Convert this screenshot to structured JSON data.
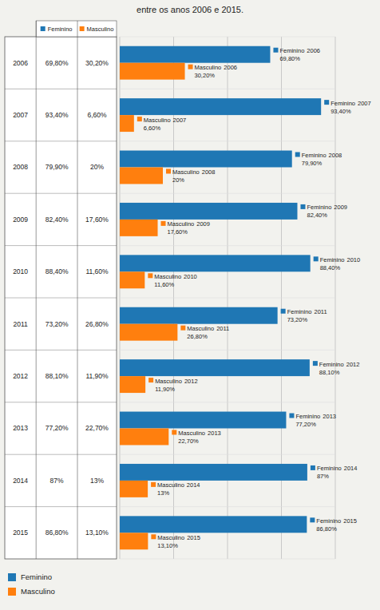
{
  "chart_data": {
    "type": "bar",
    "orientation": "horizontal",
    "title": "entre os anos 2006 e 2015.",
    "categories": [
      "2006",
      "2007",
      "2008",
      "2009",
      "2010",
      "2011",
      "2012",
      "2013",
      "2014",
      "2015"
    ],
    "series": [
      {
        "name": "Feminino",
        "values": [
          69.8,
          93.4,
          79.9,
          82.4,
          88.4,
          73.2,
          88.1,
          77.2,
          87.0,
          86.8
        ],
        "value_labels": [
          "69,80%",
          "93,40%",
          "79,90%",
          "82,40%",
          "88,40%",
          "73,20%",
          "88,10%",
          "77,20%",
          "87%",
          "86,80%"
        ]
      },
      {
        "name": "Masculino",
        "values": [
          30.2,
          6.6,
          20.0,
          17.6,
          11.6,
          26.8,
          11.9,
          22.7,
          13.0,
          13.1
        ],
        "value_labels": [
          "30,20%",
          "6,60%",
          "20%",
          "17,60%",
          "11,60%",
          "26,80%",
          "11,90%",
          "22,70%",
          "13%",
          "13,10%"
        ]
      }
    ],
    "xlim": [
      0,
      100
    ],
    "xticks": [
      0,
      25,
      50,
      75,
      100
    ],
    "grid": true,
    "tick_labels": false,
    "data_labels": true,
    "legend": "lower left"
  }
}
